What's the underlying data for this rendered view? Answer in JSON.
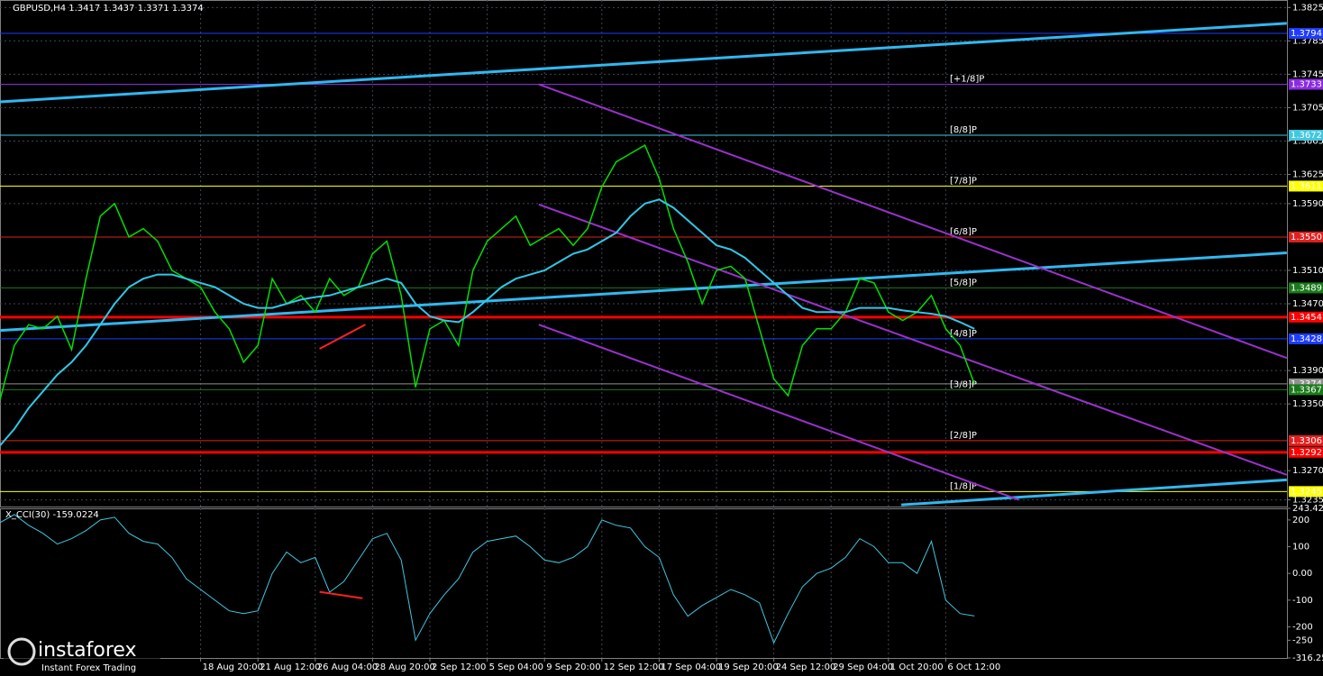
{
  "chart_data": {
    "type": "line",
    "title": "GBPUSD,H4  1.3417 1.3437 1.3371 1.3374",
    "categories": [
      null,
      null,
      null,
      null,
      null,
      null,
      null,
      null,
      null,
      null,
      null,
      null,
      null,
      null,
      "18 Aug 20:00",
      null,
      null,
      null,
      "21 Aug 12:00",
      null,
      null,
      null,
      "26 Aug 04:00",
      null,
      null,
      null,
      "28 Aug 20:00",
      null,
      null,
      null,
      "2 Sep 12:00",
      null,
      null,
      null,
      "5 Sep 04:00",
      null,
      null,
      null,
      "9 Sep 20:00",
      null,
      null,
      null,
      "12 Sep 12:00",
      null,
      null,
      null,
      "17 Sep 04:00",
      null,
      null,
      null,
      "19 Sep 20:00",
      null,
      null,
      null,
      "24 Sep 12:00",
      null,
      null,
      null,
      "29 Sep 04:00",
      null,
      null,
      null,
      "1 Oct 20:00",
      null,
      null,
      null,
      "6 Oct 12:00",
      null,
      null
    ],
    "series": [
      {
        "name": "GBPUSD",
        "color": "#00e000",
        "values": [
          1.3355,
          1.342,
          1.3445,
          1.344,
          1.3455,
          1.3415,
          1.35,
          1.3575,
          1.359,
          1.355,
          1.356,
          1.3545,
          1.351,
          1.35,
          1.349,
          1.346,
          1.344,
          1.34,
          1.342,
          1.35,
          1.347,
          1.348,
          1.346,
          1.35,
          1.348,
          1.349,
          1.353,
          1.3545,
          1.348,
          1.337,
          1.344,
          1.345,
          1.342,
          1.351,
          1.3545,
          1.356,
          1.3575,
          1.354,
          1.355,
          1.356,
          1.354,
          1.356,
          1.361,
          1.364,
          1.365,
          1.366,
          1.362,
          1.356,
          1.352,
          1.347,
          1.351,
          1.3515,
          1.35,
          1.344,
          1.338,
          1.336,
          1.342,
          1.344,
          1.344,
          1.346,
          1.35,
          1.3495,
          1.346,
          1.345,
          1.346,
          1.348,
          1.344,
          1.342,
          1.3374
        ]
      },
      {
        "name": "MA",
        "color": "#30c8e8",
        "values": [
          1.33,
          1.332,
          1.3345,
          1.3365,
          1.3385,
          1.34,
          1.342,
          1.3445,
          1.347,
          1.349,
          1.35,
          1.3505,
          1.3505,
          1.35,
          1.3495,
          1.349,
          1.348,
          1.347,
          1.3465,
          1.3465,
          1.347,
          1.3475,
          1.3478,
          1.348,
          1.3485,
          1.349,
          1.3495,
          1.35,
          1.3495,
          1.347,
          1.3455,
          1.345,
          1.3448,
          1.346,
          1.3475,
          1.349,
          1.35,
          1.3505,
          1.351,
          1.352,
          1.353,
          1.3535,
          1.3545,
          1.3555,
          1.3575,
          1.359,
          1.3595,
          1.3585,
          1.357,
          1.3555,
          1.354,
          1.3535,
          1.3525,
          1.351,
          1.3495,
          1.348,
          1.3465,
          1.346,
          1.346,
          1.346,
          1.3465,
          1.3465,
          1.3465,
          1.3462,
          1.346,
          1.3458,
          1.3455,
          1.3448,
          1.344
        ]
      }
    ],
    "ylim": [
      1.3227,
      1.3834
    ],
    "yticks": [
      1.3825,
      1.3785,
      1.3745,
      1.3705,
      1.3665,
      1.3625,
      {
        "value": 1.359,
        "label": "1.3590"
      },
      {
        "value": 1.351,
        "label": "1.3510"
      },
      {
        "value": 1.347,
        "label": "1.3470"
      },
      {
        "value": 1.339,
        "label": "1.3390"
      },
      {
        "value": 1.335,
        "label": "1.3350"
      },
      {
        "value": 1.327,
        "label": "1.3270"
      },
      1.3235
    ],
    "grid": true,
    "levels": [
      {
        "price": 1.3794,
        "color": "#1e3cff",
        "label_color": "#ffffff"
      },
      {
        "price": 1.3733,
        "murray": "[+1/8]P",
        "color": "#8a2be2",
        "label_color": "#ffffff"
      },
      {
        "price": 1.3672,
        "murray": "[8/8]P",
        "color": "#40c8e0",
        "label_color": "#000000"
      },
      {
        "price": 1.3611,
        "murray": "[7/8]P",
        "color": "#ffff00",
        "label_color": "#000000"
      },
      {
        "price": {
          "value": 1.355,
          "label": "1.3550"
        },
        "murray": "[6/8]P",
        "color": "#e02020",
        "label_color": "#ffffff"
      },
      {
        "price": 1.3489,
        "murray": "[5/8]P",
        "color": "#1a7a1a",
        "label_color": "#ffffff"
      },
      {
        "price": 1.3454,
        "color": "#ff0000",
        "label_color": "#ffffff",
        "width": 3
      },
      {
        "price": 1.3428,
        "murray": "[4/8]P",
        "color": "#1e3cff",
        "label_color": "#ffffff"
      },
      {
        "price": 1.3374,
        "color": "#909090",
        "label_color": "#000000"
      },
      {
        "price": 1.3367,
        "murray": "[3/8]P",
        "color": "#1a7a1a",
        "label_color": "#ffffff"
      },
      {
        "price": 1.3306,
        "murray": "[2/8]P",
        "color": "#e02020",
        "label_color": "#ffffff"
      },
      {
        "price": 1.3292,
        "color": "#ff0000",
        "label_color": "#ffffff",
        "width": 3
      },
      {
        "price": 1.3245,
        "murray": "[1/8]P",
        "color": "#ffff00",
        "label_color": "#000000"
      }
    ],
    "trendlines": [
      {
        "x": [
          0,
          89.8
        ],
        "y": [
          1.3712,
          1.3806
        ],
        "color": "#30b8f0",
        "width": 3
      },
      {
        "x": [
          0,
          89.8
        ],
        "y": [
          1.3438,
          1.3531
        ],
        "color": "#30b8f0",
        "width": 3
      },
      {
        "x": [
          62.9,
          89.8
        ],
        "y": [
          1.3229,
          1.3259
        ],
        "color": "#30b8f0",
        "width": 3
      },
      {
        "x": [
          37.6,
          89.8
        ],
        "y": [
          1.3733,
          1.3405
        ],
        "color": "#9932cc",
        "width": 2
      },
      {
        "x": [
          37.6,
          89.8
        ],
        "y": [
          1.3589,
          1.3265
        ],
        "color": "#9932cc",
        "width": 2
      },
      {
        "x": [
          37.6,
          71.1
        ],
        "y": [
          1.3445,
          1.3235
        ],
        "color": "#9932cc",
        "width": 2
      },
      {
        "x": [
          22.3,
          25.5
        ],
        "y": [
          1.3416,
          1.3445
        ],
        "color": "#ff2020",
        "width": 2
      }
    ],
    "indicator": {
      "title": "X_CCI(30) -159.0224",
      "color": "#40c8e0",
      "values": [
        190,
        220,
        180,
        150,
        110,
        130,
        160,
        200,
        210,
        150,
        120,
        110,
        60,
        -20,
        -60,
        -100,
        -140,
        -150,
        -140,
        0,
        80,
        40,
        60,
        -70,
        -30,
        50,
        130,
        150,
        50,
        -250,
        -150,
        -80,
        -20,
        80,
        120,
        130,
        140,
        100,
        50,
        40,
        60,
        100,
        200,
        180,
        170,
        100,
        60,
        -80,
        -160,
        -120,
        -90,
        -60,
        -80,
        -110,
        -260,
        -150,
        -50,
        0,
        20,
        60,
        130,
        100,
        40,
        40,
        0,
        120,
        -100,
        -150,
        -159.0224
      ],
      "ylim": [
        -316.257,
        243.429
      ],
      "yticks": [
        243.429,
        200,
        100,
        {
          "value": 0,
          "label": "0.00"
        },
        -100,
        -200,
        -250,
        -316.257
      ],
      "trendline": {
        "x": [
          22.3,
          25.3
        ],
        "y": [
          -69,
          -93
        ],
        "color": "#ff2020"
      }
    },
    "watermark": {
      "brand": "instaforex",
      "tagline": "Instant Forex Trading"
    }
  }
}
